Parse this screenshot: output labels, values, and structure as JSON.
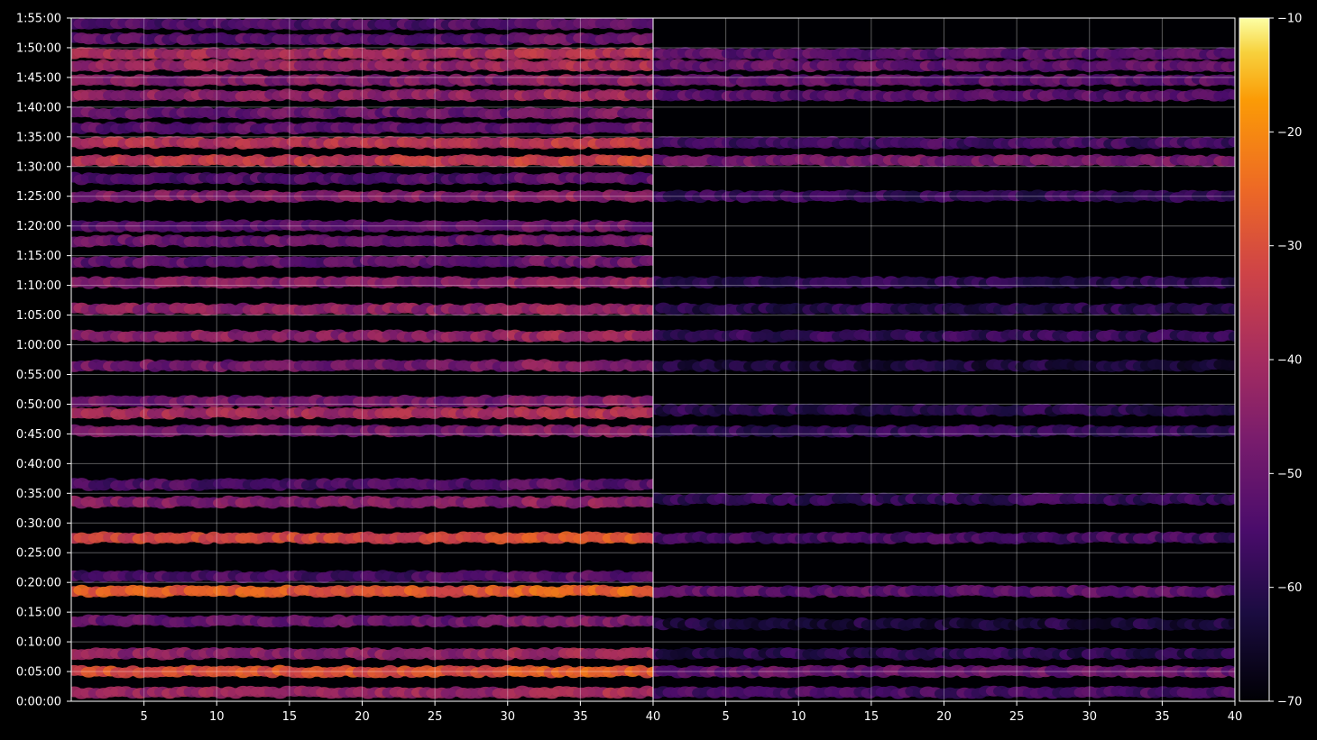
{
  "chart_data": {
    "type": "heatmap",
    "background": "#000000",
    "colormap": "inferno",
    "y_ticks": [
      "0:00:00",
      "0:05:00",
      "0:10:00",
      "0:15:00",
      "0:20:00",
      "0:25:00",
      "0:30:00",
      "0:35:00",
      "0:40:00",
      "0:45:00",
      "0:50:00",
      "0:55:00",
      "1:00:00",
      "1:05:00",
      "1:10:00",
      "1:15:00",
      "1:20:00",
      "1:25:00",
      "1:30:00",
      "1:35:00",
      "1:40:00",
      "1:45:00",
      "1:50:00",
      "1:55:00"
    ],
    "ylim_minutes": [
      0,
      115
    ],
    "panels": [
      {
        "xlim": [
          1,
          40
        ],
        "x_ticks": [
          5,
          10,
          15,
          20,
          25,
          30,
          35,
          40
        ],
        "grid": true
      },
      {
        "xlim": [
          1,
          40
        ],
        "x_ticks": [
          5,
          10,
          15,
          20,
          25,
          30,
          35,
          40
        ],
        "grid": true
      }
    ],
    "colorbar": {
      "ticks": [
        -10,
        -20,
        -30,
        -40,
        -50,
        -60,
        -70
      ],
      "range": [
        -70,
        -10
      ]
    },
    "row_profiles": {
      "left": [
        {
          "min": 1.5,
          "level": -42
        },
        {
          "min": 5,
          "level": -30
        },
        {
          "min": 8,
          "level": -44
        },
        {
          "min": 13.5,
          "level": -50
        },
        {
          "min": 18.5,
          "level": -28
        },
        {
          "min": 21,
          "level": -55
        },
        {
          "min": 27.5,
          "level": -32
        },
        {
          "min": 33.5,
          "level": -46
        },
        {
          "min": 36.5,
          "level": -55
        },
        {
          "min": 45.5,
          "level": -48
        },
        {
          "min": 48.5,
          "level": -40
        },
        {
          "min": 50.5,
          "level": -48
        },
        {
          "min": 56.5,
          "level": -48
        },
        {
          "min": 61.5,
          "level": -44
        },
        {
          "min": 66,
          "level": -44
        },
        {
          "min": 70.5,
          "level": -46
        },
        {
          "min": 74,
          "level": -52
        },
        {
          "min": 77.5,
          "level": -50
        },
        {
          "min": 80,
          "level": -52
        },
        {
          "min": 85,
          "level": -46
        },
        {
          "min": 88,
          "level": -54
        },
        {
          "min": 91,
          "level": -36
        },
        {
          "min": 94,
          "level": -38
        },
        {
          "min": 96.5,
          "level": -52
        },
        {
          "min": 99,
          "level": -50
        },
        {
          "min": 102,
          "level": -44
        },
        {
          "min": 104.5,
          "level": -46
        },
        {
          "min": 107,
          "level": -42
        },
        {
          "min": 109,
          "level": -40
        },
        {
          "min": 111.5,
          "level": -52
        },
        {
          "min": 114,
          "level": -54
        }
      ],
      "right": [
        {
          "min": 1.5,
          "level": -55
        },
        {
          "min": 5,
          "level": -50
        },
        {
          "min": 8,
          "level": -60
        },
        {
          "min": 13,
          "level": -62
        },
        {
          "min": 18.5,
          "level": -52
        },
        {
          "min": 27.5,
          "level": -56
        },
        {
          "min": 34,
          "level": -58
        },
        {
          "min": 45.5,
          "level": -58
        },
        {
          "min": 49,
          "level": -60
        },
        {
          "min": 56.5,
          "level": -62
        },
        {
          "min": 61.5,
          "level": -58
        },
        {
          "min": 66,
          "level": -60
        },
        {
          "min": 70.5,
          "level": -60
        },
        {
          "min": 85,
          "level": -58
        },
        {
          "min": 91,
          "level": -48
        },
        {
          "min": 94,
          "level": -56
        },
        {
          "min": 102,
          "level": -52
        },
        {
          "min": 104.5,
          "level": -52
        },
        {
          "min": 107,
          "level": -50
        },
        {
          "min": 109,
          "level": -52
        }
      ]
    }
  }
}
